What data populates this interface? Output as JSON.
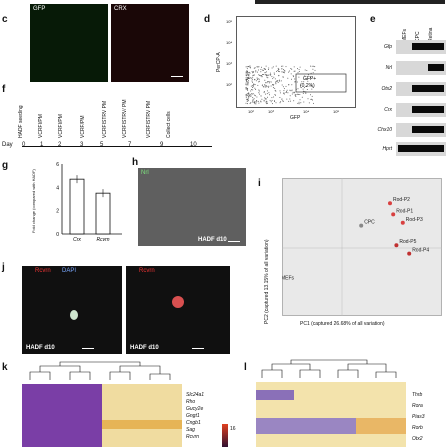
{
  "panels": {
    "c": {
      "label": "c",
      "left": "GFP",
      "right": "CRX"
    },
    "d": {
      "label": "d",
      "ylabel": "PerCP-A",
      "xlabel": "GFP",
      "yticks": [
        "10⁵",
        "10⁴",
        "10³",
        "10²"
      ],
      "xticks": [
        "10²",
        "10³",
        "10⁴",
        "10⁵"
      ],
      "gate": "GFP+",
      "gate_pct": "(0.2%)"
    },
    "e": {
      "label": "e",
      "columns": [
        "MEFs",
        "CPC",
        "Retina"
      ],
      "genes": [
        "Gfp",
        "Nrl",
        "Otx2",
        "Crx",
        "Chx10",
        "Hprt"
      ]
    },
    "f": {
      "label": "f",
      "steps": [
        "HADF seeding",
        "VCRFI/PM",
        "VCRFI/PM",
        "VCRF/PM",
        "VCRFISTRV PM",
        "VCRFISTRV/ PM",
        "VCRFISTRV PM",
        "Collect cells"
      ],
      "day_label": "Day",
      "days": [
        "0",
        "1",
        "2",
        "3",
        "5",
        "7",
        "9",
        "10"
      ]
    },
    "g": {
      "label": "g",
      "ylabel": "Fold change (compared with HADF)",
      "yticks": [
        "0",
        "2",
        "4",
        "6"
      ],
      "categories": [
        "Crx",
        "Rcvrn"
      ]
    },
    "h": {
      "label": "h",
      "tag": "Nrl",
      "foot": "HADF d10"
    },
    "i": {
      "label": "i",
      "xlabel": "PC1 (captured 26.68% of all variation)",
      "ylabel": "PC2 (captured 13.15% of all variation)",
      "labels": [
        "Rod-P2",
        "Rod-P1",
        "Rod-P3",
        "CPC",
        "Rod-P5",
        "Rod-P4",
        "MEFs"
      ]
    },
    "j": {
      "label": "j",
      "left_tag": "Rcvrn",
      "left_tag2": "DAPI",
      "right_tag": "Rcvrn",
      "foot_left": "HADF d10",
      "foot_right": "HADF d10"
    },
    "k": {
      "label": "k",
      "genes": [
        "Slc24a1",
        "Rho",
        "Gucy2e",
        "Gngt1",
        "Cngb1",
        "Sag",
        "Rcvrn"
      ],
      "scale_value": "16"
    },
    "l": {
      "label": "l",
      "genes": [
        "Thrb",
        "Rora",
        "Pias3",
        "Rorb",
        "Otx2"
      ]
    }
  },
  "chart_data": [
    {
      "type": "bar",
      "categories": [
        "Crx",
        "Rcvrn"
      ],
      "values": [
        4.7,
        3.5
      ],
      "ylim": [
        0,
        6
      ],
      "ylabel": "Fold change (compared with HADF)"
    },
    {
      "type": "scatter",
      "xlabel": "PC1 (captured 26.68% of all variation)",
      "ylabel": "PC2 (captured 13.15% of all variation)",
      "series": [
        {
          "name": "MEFs",
          "x": [
            -2.0
          ],
          "y": [
            -1.2
          ]
        },
        {
          "name": "CPC",
          "x": [
            0.6
          ],
          "y": [
            0.8
          ]
        },
        {
          "name": "Rod-P1",
          "x": [
            1.6
          ],
          "y": [
            1.2
          ]
        },
        {
          "name": "Rod-P2",
          "x": [
            1.5
          ],
          "y": [
            1.6
          ]
        },
        {
          "name": "Rod-P3",
          "x": [
            1.9
          ],
          "y": [
            0.9
          ]
        },
        {
          "name": "Rod-P4",
          "x": [
            2.1
          ],
          "y": [
            -0.2
          ]
        },
        {
          "name": "Rod-P5",
          "x": [
            1.7
          ],
          "y": [
            0.1
          ]
        }
      ]
    }
  ]
}
